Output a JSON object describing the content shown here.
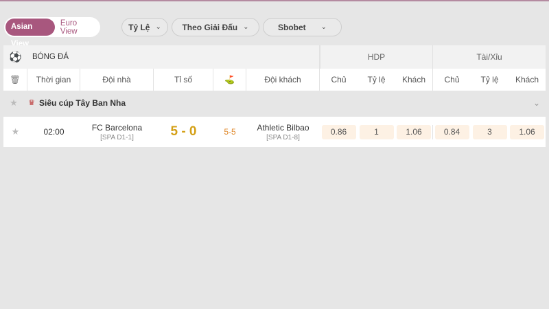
{
  "view_toggle": {
    "asian": "Asian View",
    "euro": "Euro View"
  },
  "filters": [
    {
      "label": "Tỷ Lệ"
    },
    {
      "label": "Theo Giải Đấu"
    },
    {
      "label": "Sbobet"
    }
  ],
  "header": {
    "sport": "BÓNG ĐÁ",
    "hdp": "HDP",
    "taixiu": "Tài/Xỉu"
  },
  "columns": {
    "time": "Thời gian",
    "home": "Đội nhà",
    "score": "Tỉ số",
    "away": "Đội khách",
    "hdp_home": "Chủ",
    "hdp_rate": "Tỷ lệ",
    "hdp_away": "Khách",
    "tx_home": "Chủ",
    "tx_rate": "Tỷ lệ",
    "tx_away": "Khách"
  },
  "league": {
    "name": "Siêu cúp Tây Ban Nha"
  },
  "match": {
    "time": "02:00",
    "home": "FC Barcelona",
    "home_rank": "[SPA D1-1]",
    "score": "5 - 0",
    "corners": "5-5",
    "away": "Athletic Bilbao",
    "away_rank": "[SPA D1-8]",
    "odds": [
      "0.86",
      "1",
      "1.06",
      "0.84",
      "3",
      "1.06"
    ]
  },
  "colors": {
    "accent": "#a8577e",
    "score": "#d4a017",
    "corners": "#e08a2c"
  }
}
